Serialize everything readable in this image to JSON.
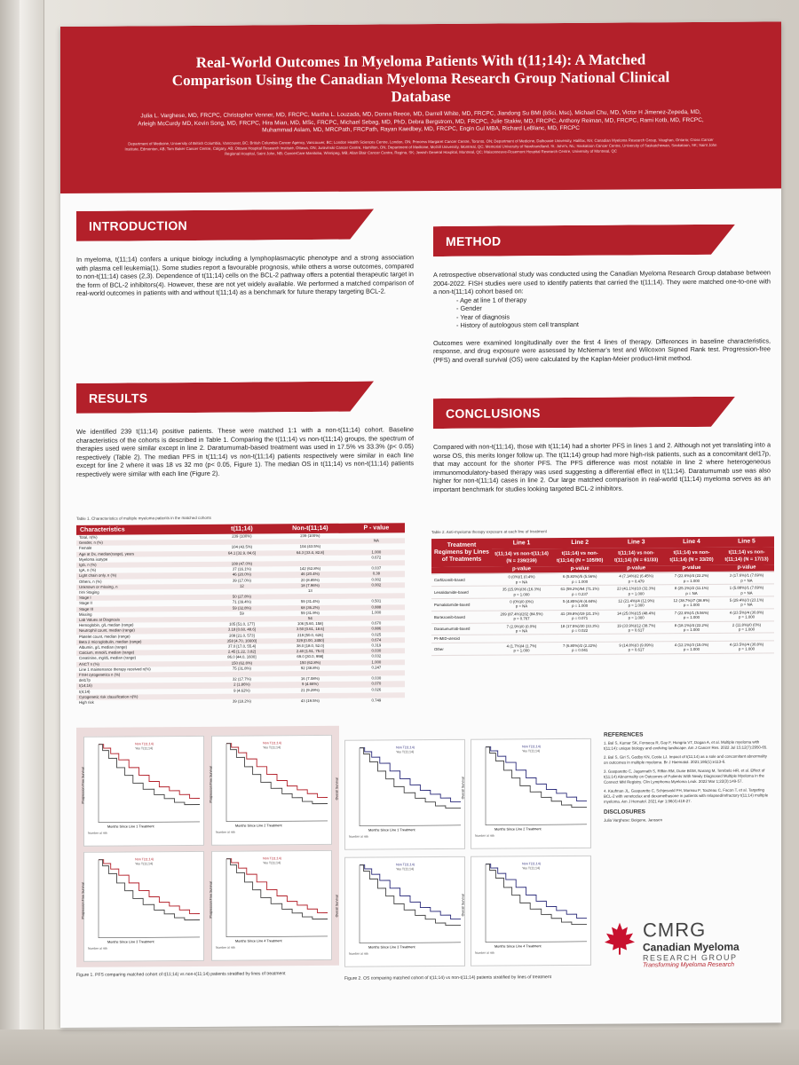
{
  "poster": {
    "title": "Real-World Outcomes In Myeloma Patients With t(11;14): A Matched Comparison Using the Canadian Myeloma Research Group National Clinical Database",
    "authors": "Julia L. Varghese, MD, FRCPC, Christopher Venner, MD, FRCPC, Martha L. Louzada, MD, Donna Reece, MD, Darrell White, MD, FRCPC, Jiandong Su BMI (bSci, Msc), Michael Chu, MD, Victor H Jimenez-Zepeda, MD, Arleigh McCurdy MD, Kevin Song, MD, FRCPC, Hira Mian, MD, MSc, FRCPC, Michael Sebag, MD, PhD, Debra Bergstrom, MD, FRCPC, Julie Stakiw, MD, FRCPC, Anthony Reiman, MD, FRCPC, Rami Kotb, MD, FRCPC, Muhammad Aslam, MD, MRCPath, FRCPath, Rayan Kaedbey, MD, FRCPC, Engin Gul MBA, Richard LeBlanc, MD, FRCPC",
    "affiliations": "Department of Medicine, University of British Columbia, Vancouver, BC; British Columbia Cancer Agency, Vancouver, BC; London Health Sciences Centre, London, ON; Princess Margaret Cancer Centre, Toronto, ON; Department of Medicine, Dalhousie University, Halifax, NS; Canadian Myeloma Research Group, Vaughan, Ontario; Cross Cancer Institute, Edmonton, AB; Tom Baker Cancer Centre, Calgary, AB; Ottawa Hospital Research Institute, Ottawa, ON; Juravinski Cancer Centre, Hamilton, ON; Department of Medicine, McGill University, Montreal, QC; Memorial University of Newfoundland, St. John's, NL; Saskatoon Cancer Centre, University of Saskatchewan, Saskatoon, SK; Saint John Regional Hospital, Saint John, NB; CancerCare Manitoba, Winnipeg, MB; Allan Blair Cancer Centre, Regina, SK; Jewish General Hospital, Montreal, QC; Maisonneuve-Rosemont Hospital Research Centre, University of Montreal, QC"
  },
  "sections": {
    "introduction": {
      "heading": "INTRODUCTION",
      "text": "In myeloma, t(11;14) confers a unique biology including a lymphoplasmacytic phenotype and a strong association with plasma cell leukemia(1). Some studies report a favourable prognosis, while others a worse outcomes, compared to non-t(11;14) cases (2,3). Dependence of t(11;14) cells on the BCL-2 pathway offers a potential therapeutic target in the form of BCL-2 inhibitors(4). However, these are not yet widely available. We performed a matched comparison of real-world outcomes in patients with and without t(11;14) as a benchmark for future therapy targeting BCL-2."
    },
    "method": {
      "heading": "METHOD",
      "text1": "A retrospective observational study was conducted using the Canadian Myeloma Research Group database between 2004-2022. FISH studies were used to identify patients that carried the t(11;14). They were matched one-to-one with a non-t(11;14) cohort based on:",
      "bullets": [
        "Age at line 1 of therapy",
        "Gender",
        "Year of diagnosis",
        "History of autologous stem cell transplant"
      ],
      "text2": "Outcomes were examined longitudinally over the first 4 lines of therapy. Differences in baseline characteristics, response, and drug exposure were assessed by McNemar's test and Wilcoxon Signed Rank test. Progression-free (PFS) and overall survival (OS) were calculated by the Kaplan-Meier product-limit method."
    },
    "results": {
      "heading": "RESULTS",
      "text": "We identified 239 t(11;14) positive patients. These were matched 1:1 with a non-t(11;14) cohort. Baseline characteristics of the cohorts is described in Table 1. Comparing the t(11;14) vs non-t(11;14) groups, the spectrum of therapies used were similar except in line 2. Daratumumab-based treatment was used in 17.5% vs 33.3% (p< 0.05) respectively (Table 2). The median PFS in t(11;14) vs non-t(11;14) patients respectively were similar in each line except for line 2 where it was 18 vs 32 mo (p< 0.05, Figure 1). The median OS in t(11;14) vs non-t(11;14) patients respectively were similar with each line (Figure 2)."
    },
    "conclusions": {
      "heading": "CONCLUSIONS",
      "text": "Compared with non-t(11;14), those with t(11;14) had a shorter PFS in lines 1 and 2. Although not yet translating into a worse OS, this merits longer follow up. The t(11;14) group had more high-risk patients, such as a concomitant del17p, that may account for the shorter PFS. The PFS difference was most notable in line 2 where heterogeneous immunomodulatory-based therapy was used suggesting a differential effect in t(11;14). Daratumumab use was also higher for non-t(11;14) cases in line 2. Our large matched comparison in real-world t(11;14) myeloma serves as an important benchmark for studies looking targeted BCL-2 inhibitors."
    }
  },
  "table1": {
    "caption": "Table 1. Characteristics of multiple myeloma patients in the matched cohorts",
    "headers": [
      "Characteristics",
      "t(11;14)",
      "Non-t(11;14)",
      "P - value"
    ],
    "rows": [
      [
        "Total, n(%)",
        "239 (100%)",
        "239 (100%)",
        ""
      ],
      [
        "Gender, n (%)",
        "",
        "",
        "NA"
      ],
      [
        "Female",
        "104 (43.5%)",
        "104 (43.5%)",
        ""
      ],
      [
        "Age at Dx, median(range), years",
        "64.1 [32.9, 84.6]",
        "64.3 [33.4, 82.8]",
        "1.000"
      ],
      [
        "Myeloma isotype",
        "",
        "",
        "0.672"
      ],
      [
        "IgG, n (%)",
        "108 (47.0%)",
        "",
        ""
      ],
      [
        "IgA, n (%)",
        "37 (16.1%)",
        "142 (62.8%)",
        "0.037"
      ],
      [
        "Light chain only, n (%)",
        "46 (20.0%)",
        "46 (20.4%)",
        "0.38"
      ],
      [
        "Others, n (%)",
        "39 (17.0%)",
        "20 (8.85%)",
        "0.002"
      ],
      [
        "Unknown or missing, n",
        "12",
        "18 (7.96%)",
        "0.002"
      ],
      [
        "ISS Staging",
        "",
        "13",
        ""
      ],
      [
        "Stage I",
        "50 (27.8%)",
        "",
        ""
      ],
      [
        "Stage II",
        "71 (39.4%)",
        "59 (31.4%)",
        "0.501"
      ],
      [
        "Stage III",
        "59 (32.8%)",
        "68 (36.2%)",
        "0.888"
      ],
      [
        "Missing",
        "59",
        "59 (31.9%)",
        "1.000"
      ],
      [
        "Lab Values at Diagnosis",
        "",
        "54",
        ""
      ],
      [
        "Hemoglobin, g/L median (range)",
        "105 [51.0, 177]",
        "106 [5.60, 158]",
        "0.670"
      ],
      [
        "Neutrophil count, median (range)",
        "3.18 [0.60, 48.6]",
        "3.50 [0.61, 18.6]",
        "0.886"
      ],
      [
        "Platelet count, median (range)",
        "208 [21.0, 573]",
        "219 [50.0, 626]",
        "0.025"
      ],
      [
        "Beta 2 microglobulin, median (range)",
        "358 [4.70, 16600]",
        "329 [0.00, 2450]",
        "0.674"
      ],
      [
        "Albumin, g/L median (range)",
        "37.0 [17.0, 55.4]",
        "38.0 [18.0, 52.0]",
        "0.319"
      ],
      [
        "Calcium, mmol/L median (range)",
        "2.45 [1.22, 3.82]",
        "2.40 [1.51, 75.0]",
        "0.030"
      ],
      [
        "Creatinine, mg/dL median (range)",
        "86.0 [44.0, 1600]",
        "69.0 [30.0, 998]",
        "0.032"
      ],
      [
        "ASCT n (%)",
        "150 (62.8%)",
        "150 (62.8%)",
        "1.000"
      ],
      [
        "Line 1 maintenance therapy received n(%)",
        "75 (31.8%)",
        "92 (38.8%)",
        "0.247"
      ],
      [
        "FISH cytogenetics n (%)",
        "",
        "",
        ""
      ],
      [
        "del17p",
        "32 (17.7%)",
        "16 (7.08%)",
        "0.030"
      ],
      [
        "t(14;16)",
        "2 (1.86%)",
        "9 (4.66%)",
        "0.070"
      ],
      [
        "t(4;14)",
        "9 (4.62%)",
        "21 (9.29%)",
        "0.026"
      ],
      [
        "Cytogenetic risk classification n(%)",
        "",
        "",
        ""
      ],
      [
        "High risk",
        "39 (18.2%)",
        "43 (19.5%)",
        "0.749"
      ]
    ]
  },
  "table2": {
    "caption": "Table 2. Anti-myeloma therapy exposure at each line of treatment",
    "row_header": "Treatment Regimens by Lines of Treatments",
    "lines": [
      "Line 1",
      "Line 2",
      "Line 3",
      "Line 4",
      "Line 5"
    ],
    "cohorts": [
      "t(11;14) vs non-t(11;14) (N = 239/239)",
      "t(11;14) vs non-t(11;14) (N = 105/90)",
      "t(11;14) vs non-t(11;14) (N = 61/33)",
      "t(11;14) vs non-t(11;14) (N = 33/20)",
      "t(11;14) vs non-t(11;14) (N = 17/13)"
    ],
    "pvalue_label": "p-value",
    "rows": [
      [
        "Carfilzomib-based",
        "0 (0%)/1 (0.4%)\np = NA",
        "6 (5.83%)/5 (5.56%)\np = 1.000",
        "4 (7.14%)/2 (6.45%)\np = 0.479",
        "7 (22.6%)/4 (22.2%)\np = 1.000",
        "3 (17.6%)/1 (7.69%)\np = NA"
      ],
      [
        "Lenalidomide-based",
        "35 (15.9%)/36 (16.3%)\np = 1.000",
        "61 (59.2%)/64 (71.1%)\np = 0.237",
        "23 (41.1%)/10 (32.3%)\np = 1.000",
        "8 (25.1%)/2 (11.1%)\np = NA",
        "1 (5.88%)/1 (7.69%)\np = NA"
      ],
      [
        "Pomalidomide-based",
        "0 (0%)/0 (0%)\np = NA",
        "5 (4.85%)/4 (4.44%)\np = 1.000",
        "12 (21.4%)/4 (12.9%)\np = 1.000",
        "12 (38.7%)/7 (38.9%)\np = 1.000",
        "5 (29.4%)/3 (23.1%)\np = NA"
      ],
      [
        "Bortezomib-based",
        "209 (87.4%)/202 (84.5%)\np = 0.767",
        "41 (39.8%)/19 (21.1%)\np = 0.071",
        "14 (25.0%)/15 (48.4%)\np = 1.000",
        "7 (22.6%)/1 (5.56%)\np = 1.000",
        "4 (23.5%)/4 (30.8%)\np = 1.000"
      ],
      [
        "Daratumumab-based",
        "7 (2.9%)/0 (0.0%)\np = NA",
        "18 (17.5%)/30 (33.3%)\np = 0.022",
        "19 (33.9%)/12 (38.7%)\np = 0.617",
        "8 (18.1%)/4 (22.2%)\np = 1.000",
        "2 (11.8%)/0 (0%)\np = 1.000"
      ],
      [
        "PI-IMID-steroid",
        "",
        "",
        "",
        "",
        ""
      ],
      [
        "Other",
        "4 (1.7%)/4 (1.7%)\np = 1.000",
        "7 (6.80%)/2 (2.22%)\np = 0.041",
        "9 (14.8%)/3 (9.09%)\np = 0.617",
        "4 (12.1%)/3 (15.0%)\np = 1.000",
        "4 (23.5%)/4 (30.8%)\np = 1.000"
      ]
    ]
  },
  "figures": {
    "fig1_caption": "Figure 1. PFS comparing matched cohort of t(11;14) vs non-t(11;14) patients stratified by lines of treatment",
    "fig2_caption": "Figure 2. OS comparing matched cohort of t(11;14) vs non-t(11;14) patients stratified by lines of treatment",
    "pfs_ylabel": "Progression Free Survival",
    "os_ylabel": "Overall Survival",
    "xlabels": [
      "Months Since Line 1 Treatment",
      "Months Since Line 2 Treatment",
      "Months Since Line 3 Treatment",
      "Months Since Line 4 Treatment"
    ],
    "legend_a": "Non T(11;14)",
    "legend_b": "Yes T(11;14)",
    "at_risk": "Number at risk"
  },
  "references": {
    "heading": "REFERENCES",
    "items": [
      "1. Bal S, Kumar SK, Fonseca R, Gay F, Hungria VT, Dogan A, et al. Multiple myeloma with t(11;14): unique biology and evolving landscape. Am J Cancer Res. 2022 Jul 15;12(7):2950-65.",
      "2. Bal S, Giri S, Godby KN, Costa LJ. Impact of t(11;14) as a sole and concomitant abnormality on outcomes in multiple myeloma. Br J Haematol. 2021;195(1):e113-6.",
      "3. Gasparetto C, Jagannath S, Rifkin RM, Durie BGM, Narang M, Terebelo HR, et al. Effect of t(11;14) Abnormality on Outcomes of Patients With Newly Diagnosed Multiple Myeloma in the Connect MM Registry. Clin Lymphoma Myeloma Leuk. 2022 Mar 1;22(3):149-57.",
      "4. Kaufman JL, Gasparetto C, Schjesvold FH, Moreau P, Touzeau C, Facon T, et al. Targeting BCL-2 with venetoclax and dexamethasone in patients with relapsed/refractory t(11;14) multiple myeloma. Am J Hematol. 2021 Apr 1;96(4):418-27."
    ],
    "disclosures_heading": "DISCLOSURES",
    "disclosures": "Julia Varghese: Beigene, Janssen"
  },
  "logo": {
    "abbrev": "CMRG",
    "name": "Canadian Myeloma",
    "sub": "RESEARCH GROUP",
    "tagline": "Transforming Myeloma Research",
    "leaf_color": "#c8102e"
  },
  "colors": {
    "accent": "#b3202a",
    "pfs_line": "#b3202a",
    "os_line": "#2b2b7a"
  }
}
